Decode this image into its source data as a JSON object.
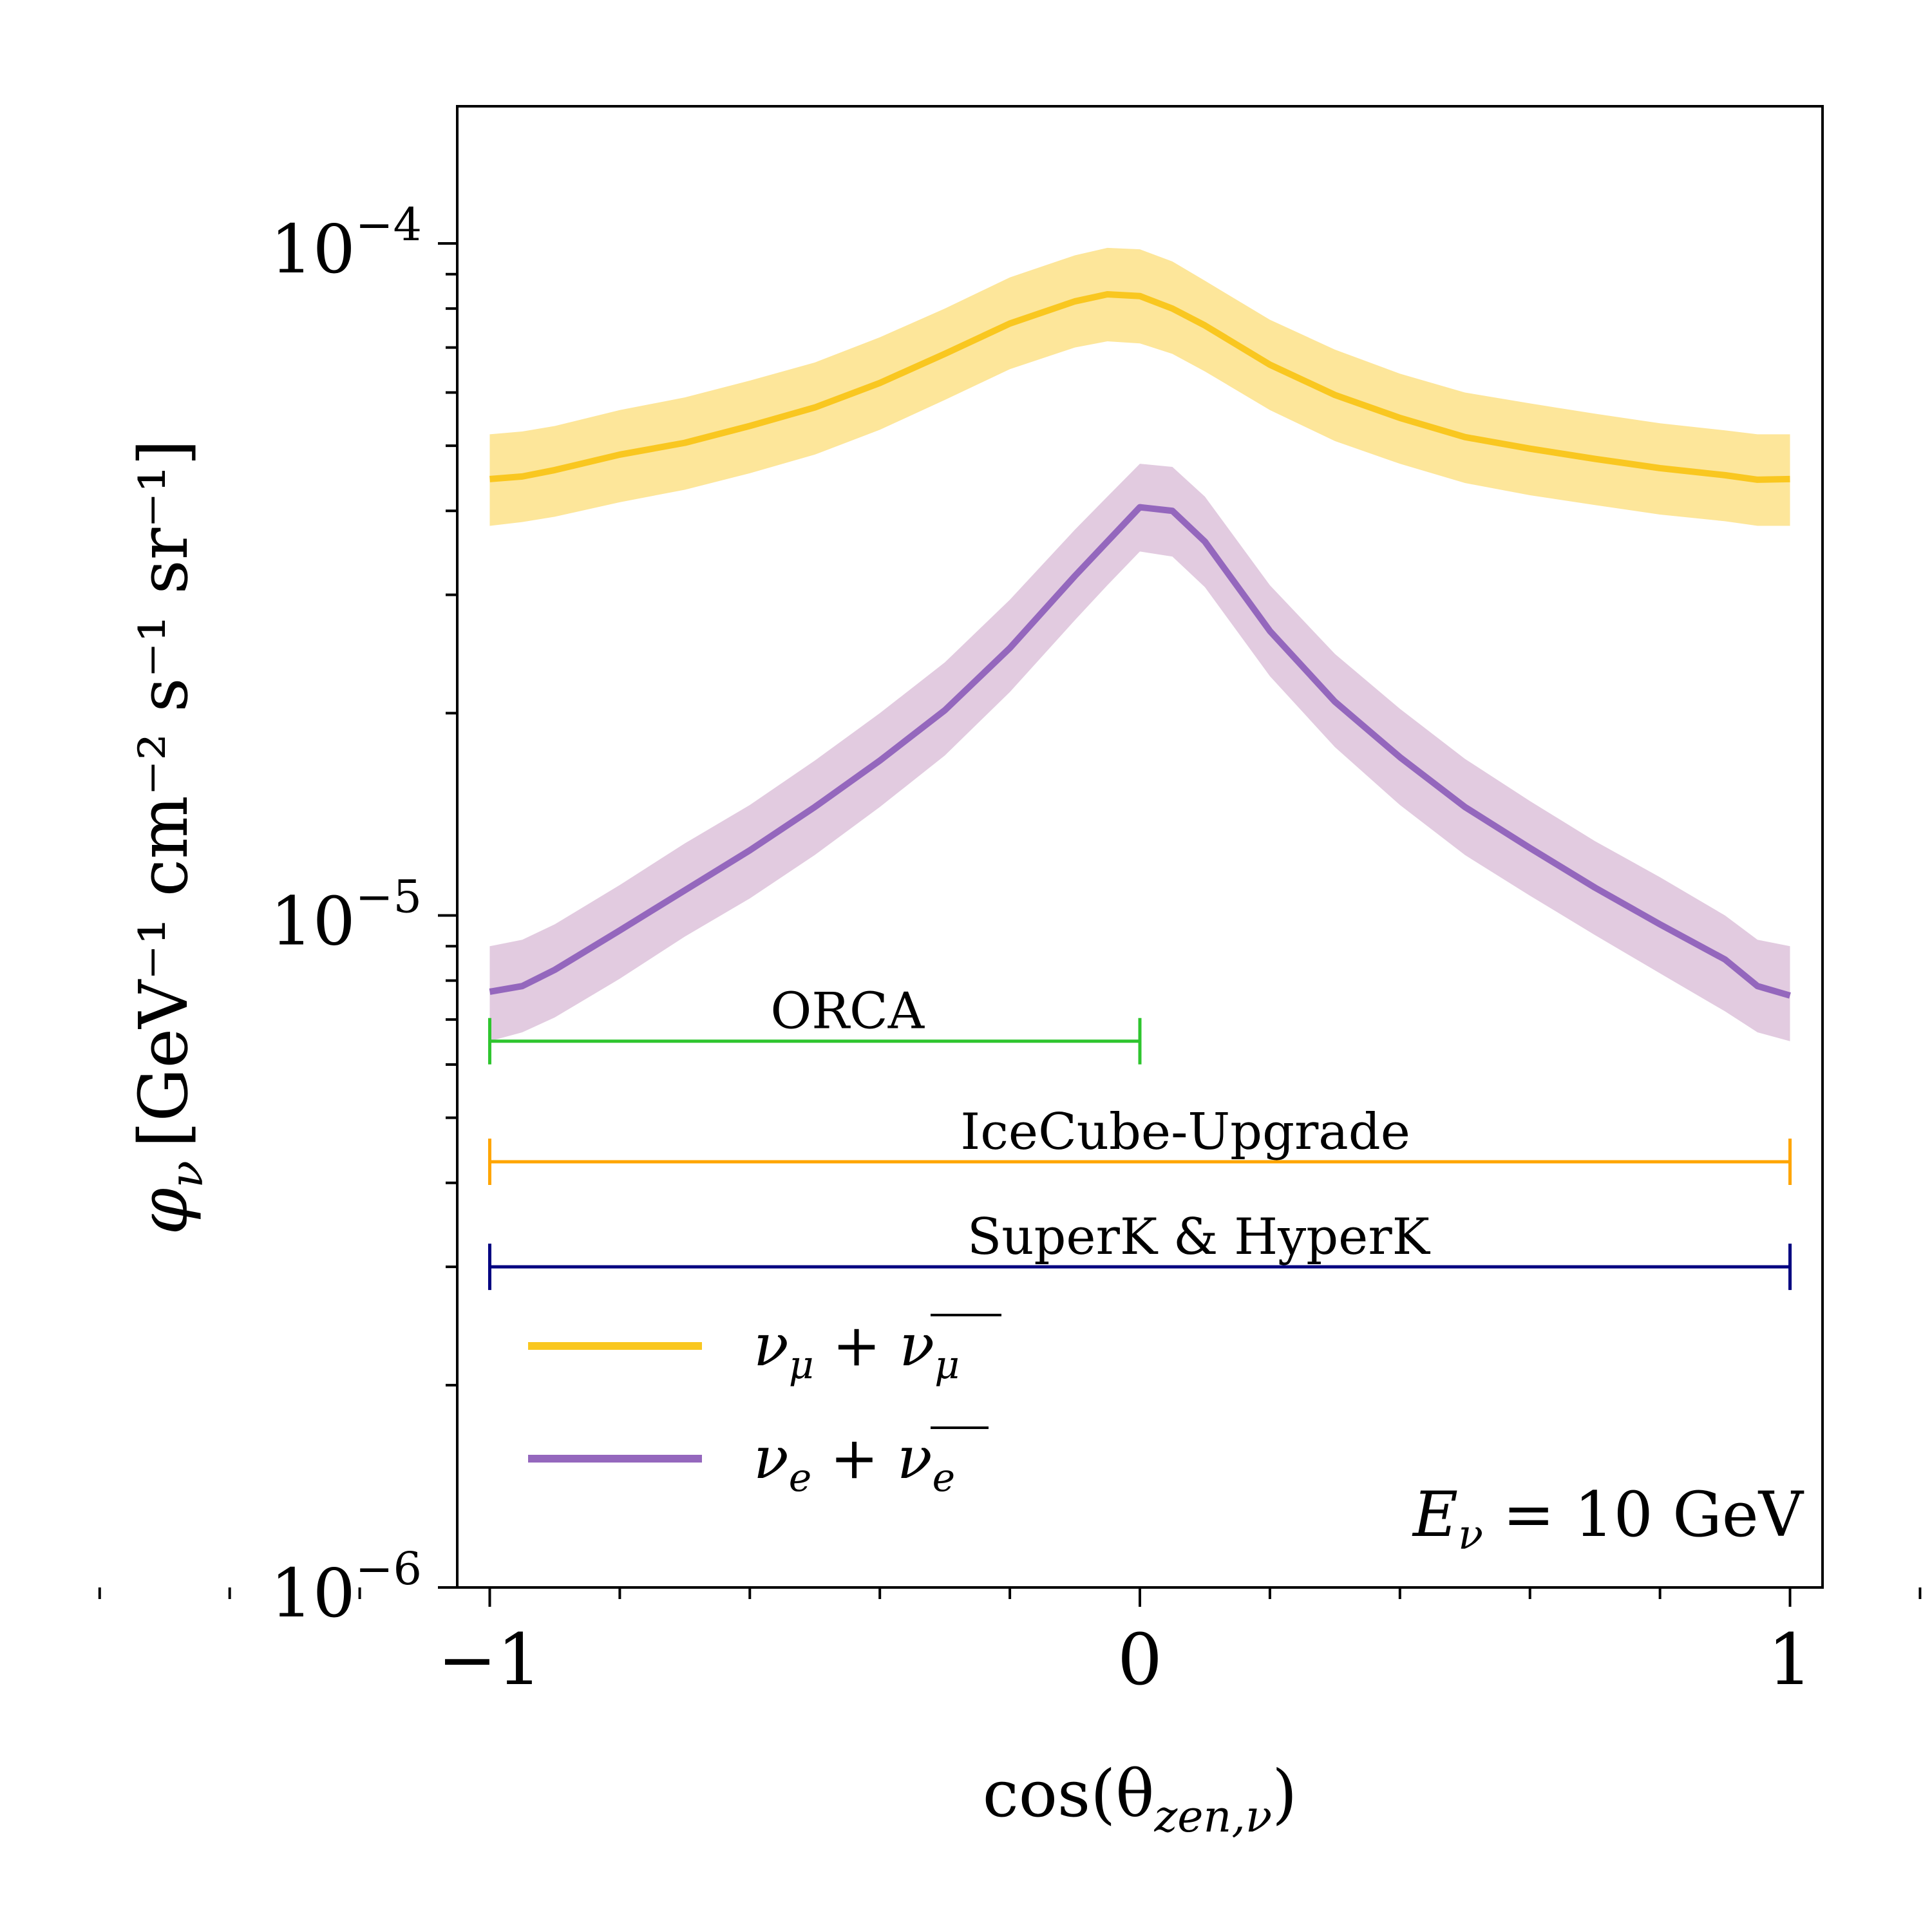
{
  "chart_data": {
    "type": "line",
    "title": "",
    "xlabel": "cos(θ",
    "xlabel_sub": "zen,ν",
    "xlabel_close": ")",
    "ylabel_symbol": "φ",
    "ylabel_symbol_sub": "ν",
    "ylabel_units": "[GeV⁻¹ cm⁻² s⁻¹ sr⁻¹]",
    "yscale": "log",
    "xlim": [
      -1.05,
      1.05
    ],
    "ylim": [
      1e-06,
      0.00016
    ],
    "x_ticks": [
      {
        "value": -1,
        "label": "−1"
      },
      {
        "value": 0,
        "label": "0"
      },
      {
        "value": 1,
        "label": "1"
      }
    ],
    "y_ticks": [
      {
        "value": 1e-06,
        "base": "10",
        "exp": "−6"
      },
      {
        "value": 1e-05,
        "base": "10",
        "exp": "−5"
      },
      {
        "value": 0.0001,
        "base": "10",
        "exp": "−4"
      }
    ],
    "annotation": {
      "lhs": "E",
      "lhs_sub": "ν",
      "rhs": " = 10 GeV"
    },
    "x": [
      -1.0,
      -0.95,
      -0.9,
      -0.8,
      -0.7,
      -0.6,
      -0.5,
      -0.4,
      -0.3,
      -0.2,
      -0.1,
      -0.05,
      0.0,
      0.05,
      0.1,
      0.2,
      0.3,
      0.4,
      0.5,
      0.6,
      0.7,
      0.8,
      0.9,
      0.95,
      1.0
    ],
    "series": [
      {
        "name": "numu",
        "legend": {
          "a": "ν",
          "a_sub": "μ",
          "op": " + ",
          "b": "ν",
          "b_sub": "μ",
          "b_bar": true
        },
        "color": "#f9c720",
        "band_color": "#fde69a",
        "values": [
          4.46e-05,
          4.5e-05,
          4.6e-05,
          4.85e-05,
          5.05e-05,
          5.35e-05,
          5.7e-05,
          6.2e-05,
          6.85e-05,
          7.6e-05,
          8.2e-05,
          8.4e-05,
          8.35e-05,
          8e-05,
          7.55e-05,
          6.6e-05,
          5.95e-05,
          5.5e-05,
          5.15e-05,
          4.95e-05,
          4.78e-05,
          4.63e-05,
          4.52e-05,
          4.45e-05,
          4.46e-05
        ],
        "band_low": [
          3.8e-05,
          3.85e-05,
          3.92e-05,
          4.12e-05,
          4.3e-05,
          4.55e-05,
          4.85e-05,
          5.28e-05,
          5.85e-05,
          6.5e-05,
          7e-05,
          7.15e-05,
          7.1e-05,
          6.85e-05,
          6.45e-05,
          5.65e-05,
          5.08e-05,
          4.7e-05,
          4.4e-05,
          4.22e-05,
          4.08e-05,
          3.95e-05,
          3.86e-05,
          3.8e-05,
          3.8e-05
        ],
        "band_high": [
          5.2e-05,
          5.25e-05,
          5.35e-05,
          5.65e-05,
          5.9e-05,
          6.25e-05,
          6.65e-05,
          7.25e-05,
          8e-05,
          8.9e-05,
          9.6e-05,
          9.85e-05,
          9.8e-05,
          9.4e-05,
          8.8e-05,
          7.7e-05,
          6.95e-05,
          6.4e-05,
          6e-05,
          5.78e-05,
          5.58e-05,
          5.4e-05,
          5.27e-05,
          5.2e-05,
          5.2e-05
        ]
      },
      {
        "name": "nue",
        "legend": {
          "a": "ν",
          "a_sub": "e",
          "op": " + ",
          "b": "ν",
          "b_sub": "e",
          "b_bar": true
        },
        "color": "#9467bd",
        "band_color": "#e2cbe0",
        "values": [
          7.7e-06,
          7.85e-06,
          8.3e-06,
          9.5e-06,
          1.09e-05,
          1.25e-05,
          1.45e-05,
          1.7e-05,
          2.02e-05,
          2.5e-05,
          3.2e-05,
          3.6e-05,
          4.05e-05,
          4e-05,
          3.6e-05,
          2.65e-05,
          2.08e-05,
          1.72e-05,
          1.45e-05,
          1.26e-05,
          1.1e-05,
          9.7e-06,
          8.6e-06,
          7.85e-06,
          7.6e-06
        ],
        "band_low": [
          6.5e-06,
          6.7e-06,
          7.05e-06,
          8.05e-06,
          9.3e-06,
          1.06e-05,
          1.23e-05,
          1.45e-05,
          1.73e-05,
          2.15e-05,
          2.75e-05,
          3.1e-05,
          3.48e-05,
          3.42e-05,
          3.08e-05,
          2.27e-05,
          1.78e-05,
          1.46e-05,
          1.23e-05,
          1.07e-05,
          9.35e-06,
          8.2e-06,
          7.2e-06,
          6.7e-06,
          6.5e-06
        ],
        "band_high": [
          9e-06,
          9.2e-06,
          9.7e-06,
          1.11e-05,
          1.28e-05,
          1.46e-05,
          1.7e-05,
          2e-05,
          2.38e-05,
          2.95e-05,
          3.75e-05,
          4.2e-05,
          4.7e-05,
          4.65e-05,
          4.2e-05,
          3.1e-05,
          2.45e-05,
          2.03e-05,
          1.71e-05,
          1.48e-05,
          1.29e-05,
          1.14e-05,
          1e-05,
          9.2e-06,
          9e-06
        ]
      }
    ],
    "ranges": [
      {
        "name": "ORCA",
        "label": "ORCA",
        "x_start": -1,
        "x_end": 0,
        "y": 6.5e-06,
        "color": "#2ec52e"
      },
      {
        "name": "IceCube-Upgrade",
        "label": "IceCube-Upgrade",
        "x_start": -1,
        "x_end": 1,
        "y": 4.3e-06,
        "color": "#ffa500"
      },
      {
        "name": "SuperK-HyperK",
        "label": "SuperK & HyperK",
        "x_start": -1,
        "x_end": 1,
        "y": 3e-06,
        "color": "#000080"
      }
    ]
  }
}
